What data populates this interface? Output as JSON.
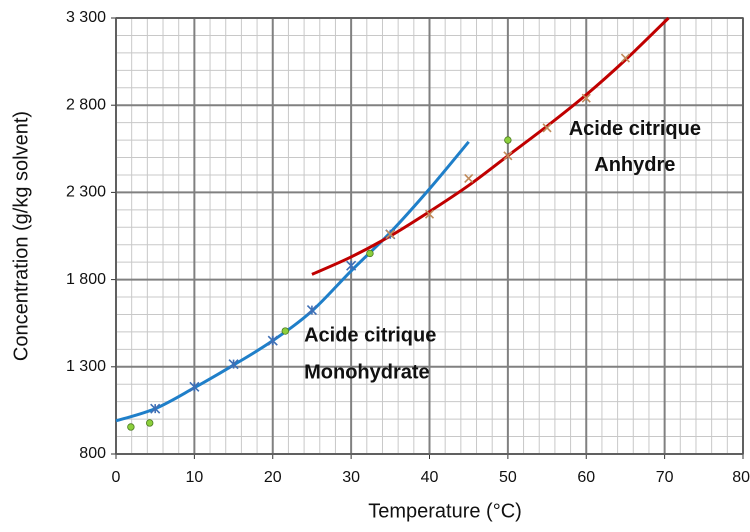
{
  "chart_data": {
    "type": "line",
    "x_label": "Temperature  (°C)",
    "y_label": "Concentration  (g/kg solvent)",
    "xlim": [
      0,
      80
    ],
    "xticks": [
      0,
      10,
      20,
      30,
      40,
      50,
      60,
      70,
      80
    ],
    "ylim": [
      800,
      3300
    ],
    "yticks": [
      {
        "value": 800,
        "label": "800"
      },
      {
        "value": 1300,
        "label": "1 300"
      },
      {
        "value": 1800,
        "label": "1 800"
      },
      {
        "value": 2300,
        "label": "2 300"
      },
      {
        "value": 2800,
        "label": "2 800"
      },
      {
        "value": 3300,
        "label": "3 300"
      }
    ],
    "grid": true,
    "minor_grid_divisions": 5,
    "series": [
      {
        "style": "line",
        "color": "#1f7fc9",
        "x": [
          0,
          5,
          10,
          15,
          20,
          25,
          30,
          35,
          40,
          45
        ],
        "values": [
          990,
          1060,
          1180,
          1310,
          1450,
          1620,
          1850,
          2070,
          2320,
          2590
        ]
      },
      {
        "style": "line",
        "color": "#c00000",
        "x": [
          25,
          30,
          35,
          40,
          45,
          50,
          55,
          60,
          65,
          70.5
        ],
        "values": [
          1830,
          1930,
          2050,
          2190,
          2340,
          2510,
          2680,
          2860,
          3060,
          3300
        ]
      },
      {
        "style": "asterisk",
        "color": "#3f6fb5",
        "x": [
          5,
          10,
          15,
          20,
          25,
          30,
          35
        ],
        "values": [
          1060,
          1185,
          1315,
          1450,
          1625,
          1880,
          2060
        ]
      },
      {
        "style": "cross",
        "color": "#c08a5a",
        "x": [
          35,
          40,
          45,
          50,
          55,
          60,
          65
        ],
        "values": [
          2060,
          2175,
          2380,
          2510,
          2670,
          2840,
          3070
        ]
      },
      {
        "style": "dot",
        "color": "#8ccf3c",
        "x": [
          1.9,
          4.3,
          21.6,
          32.4,
          50
        ],
        "values": [
          955,
          978,
          1505,
          1950,
          2600
        ]
      }
    ],
    "annotations": [
      {
        "text": "Acide citrique",
        "x": 24,
        "y": 1476
      },
      {
        "text": "Monohydrate",
        "x": 24,
        "y": 1264
      },
      {
        "text": "Acide citrique",
        "x": 66.2,
        "y": 2658
      },
      {
        "text": "Anhydre",
        "x": 66.2,
        "y": 2452
      }
    ]
  }
}
